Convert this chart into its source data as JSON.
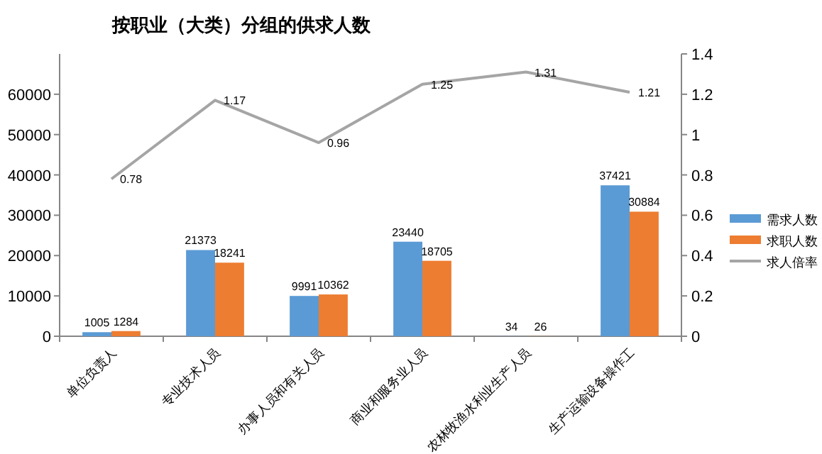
{
  "chart_data": {
    "type": "bar",
    "title": "按职业（大类）分组的供求人数",
    "categories": [
      "单位负责人",
      "专业技术人员",
      "办事人员和有关人员",
      "商业和服务业人员",
      "农林牧渔水利业生产人员",
      "生产运输设备操作工"
    ],
    "series": [
      {
        "name": "需求人数",
        "color": "#5b9bd5",
        "values": [
          1005,
          21373,
          9991,
          23440,
          34,
          37421
        ]
      },
      {
        "name": "求职人数",
        "color": "#ed7d31",
        "values": [
          1284,
          18241,
          10362,
          18705,
          26,
          30884
        ]
      },
      {
        "name": "求人倍率",
        "type": "line",
        "axis": "y2",
        "color": "#a5a5a5",
        "values": [
          0.78,
          1.17,
          0.96,
          1.25,
          1.31,
          1.21
        ]
      }
    ],
    "ylim": [
      0,
      70000
    ],
    "yticks": [
      0,
      10000,
      20000,
      30000,
      40000,
      50000,
      60000
    ],
    "y2lim": [
      0,
      1.4
    ],
    "y2ticks": [
      0,
      0.2,
      0.4,
      0.6,
      0.8,
      1,
      1.2,
      1.4
    ],
    "data_labels": true,
    "legend": "right",
    "grid": false
  }
}
